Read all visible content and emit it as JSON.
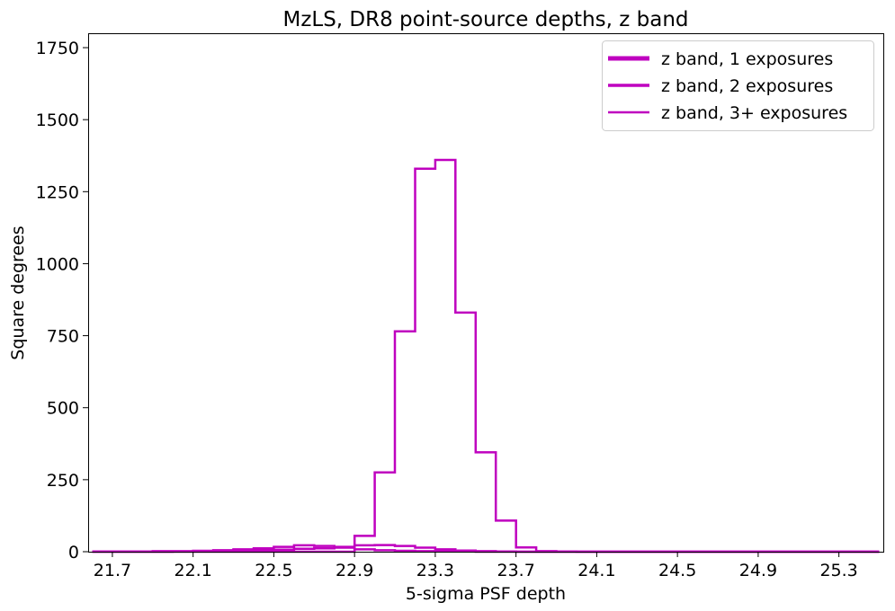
{
  "chart_data": {
    "type": "line",
    "title": "MzLS, DR8 point-source depths, z band",
    "xlabel": "5-sigma PSF depth",
    "ylabel": "Square degrees",
    "xlim": [
      21.58,
      25.52
    ],
    "ylim": [
      0,
      1800
    ],
    "xticks": [
      "21.7",
      "22.1",
      "22.5",
      "22.9",
      "23.3",
      "23.7",
      "24.1",
      "24.5",
      "24.9",
      "25.3"
    ],
    "yticks": [
      "0",
      "250",
      "500",
      "750",
      "1000",
      "1250",
      "1500",
      "1750"
    ],
    "grid": false,
    "legend_position": "top-right",
    "color": "#bf00bf",
    "bin_edges": [
      21.6,
      21.7,
      21.8,
      21.9,
      22.0,
      22.1,
      22.2,
      22.3,
      22.4,
      22.5,
      22.6,
      22.7,
      22.8,
      22.9,
      23.0,
      23.1,
      23.2,
      23.3,
      23.4,
      23.5,
      23.6,
      23.7,
      23.8,
      23.9,
      24.0,
      24.1,
      24.2,
      24.3,
      24.4,
      24.5,
      24.6,
      24.7,
      24.8,
      24.9,
      25.0,
      25.1,
      25.2,
      25.3,
      25.4,
      25.5
    ],
    "series": [
      {
        "name": "z band, 1 exposures",
        "values": [
          1,
          1,
          1,
          2,
          2,
          3,
          5,
          8,
          12,
          17,
          22,
          20,
          14,
          8,
          5,
          3,
          2,
          1,
          1,
          0,
          0,
          0,
          0,
          0,
          0,
          0,
          0,
          0,
          0,
          0,
          0,
          0,
          0,
          0,
          0,
          0,
          0,
          0,
          0
        ]
      },
      {
        "name": "z band, 2 exposures",
        "values": [
          0,
          0,
          0,
          0,
          1,
          1,
          2,
          3,
          5,
          7,
          10,
          12,
          17,
          22,
          23,
          20,
          14,
          8,
          4,
          2,
          1,
          0,
          0,
          0,
          0,
          0,
          0,
          0,
          0,
          0,
          0,
          0,
          0,
          0,
          0,
          0,
          0,
          0,
          0
        ]
      },
      {
        "name": "z band, 3+ exposures",
        "values": [
          0,
          0,
          0,
          0,
          0,
          0,
          0,
          0,
          0,
          0,
          0,
          0,
          0,
          55,
          275,
          765,
          1330,
          1360,
          830,
          345,
          108,
          15,
          2,
          1,
          0,
          0,
          0,
          0,
          0,
          0,
          0,
          0,
          0,
          0,
          0,
          0,
          0,
          0,
          0
        ]
      }
    ]
  }
}
